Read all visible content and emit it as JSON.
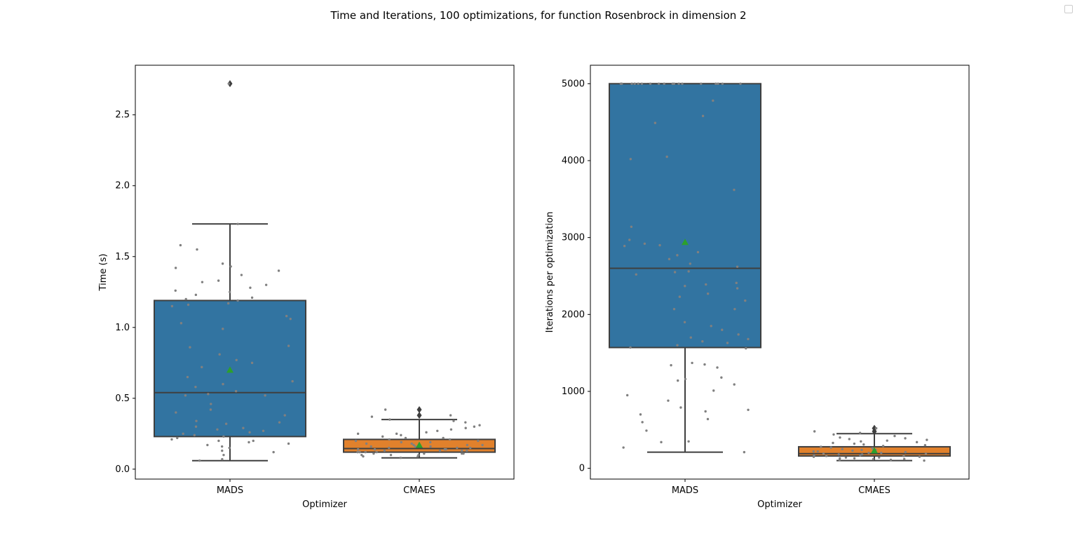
{
  "figure": {
    "title": "Time and Iterations, 100 optimizations, for function Rosenbrock in dimension 2"
  },
  "colors": {
    "mads": "#3274a1",
    "cmaes": "#e1812c",
    "box_edge": "#3f3f3f",
    "mean_marker": "#2ca02c",
    "strip_points": "#808080"
  },
  "chart_data": [
    {
      "type": "box",
      "xlabel": "Optimizer",
      "ylabel": "Time (s)",
      "ylim": [
        -0.07,
        2.85
      ],
      "yticks": [
        0.0,
        0.5,
        1.0,
        1.5,
        2.0,
        2.5
      ],
      "ytick_labels": [
        "0.0",
        "0.5",
        "1.0",
        "1.5",
        "2.0",
        "2.5"
      ],
      "categories": [
        "MADS",
        "CMAES"
      ],
      "legend": "top-right (empty)",
      "grid": false,
      "boxes": [
        {
          "name": "MADS",
          "color": "#3274a1",
          "whisker_low": 0.06,
          "q1": 0.23,
          "median": 0.54,
          "q3": 1.19,
          "whisker_high": 1.73,
          "mean": 0.7,
          "outliers": [
            2.72
          ]
        },
        {
          "name": "CMAES",
          "color": "#e1812c",
          "whisker_low": 0.08,
          "q1": 0.12,
          "median": 0.145,
          "q3": 0.21,
          "whisker_high": 0.35,
          "mean": 0.17,
          "outliers": [
            0.38,
            0.42
          ]
        }
      ],
      "points": [
        [
          2.72,
          1.73,
          1.58,
          1.55,
          1.45,
          1.43,
          1.42,
          1.4,
          1.37,
          1.33,
          1.32,
          1.3,
          1.28,
          1.26,
          1.25,
          1.23,
          1.21,
          1.2,
          1.19,
          1.17,
          1.16,
          1.15,
          1.08,
          1.06,
          1.03,
          0.99,
          0.87,
          0.86,
          0.81,
          0.77,
          0.75,
          0.72,
          0.65,
          0.62,
          0.6,
          0.58,
          0.55,
          0.53,
          0.52,
          0.52,
          0.46,
          0.42,
          0.4,
          0.38,
          0.34,
          0.33,
          0.32,
          0.3,
          0.29,
          0.28,
          0.27,
          0.26,
          0.25,
          0.24,
          0.23,
          0.22,
          0.21,
          0.2,
          0.2,
          0.19,
          0.18,
          0.17,
          0.16,
          0.15,
          0.13,
          0.12,
          0.1,
          0.07,
          0.06
        ],
        [
          0.42,
          0.38,
          0.37,
          0.35,
          0.34,
          0.33,
          0.31,
          0.3,
          0.29,
          0.28,
          0.27,
          0.26,
          0.25,
          0.25,
          0.24,
          0.23,
          0.22,
          0.22,
          0.21,
          0.21,
          0.2,
          0.2,
          0.19,
          0.19,
          0.18,
          0.18,
          0.17,
          0.17,
          0.17,
          0.16,
          0.16,
          0.16,
          0.15,
          0.15,
          0.15,
          0.14,
          0.14,
          0.14,
          0.14,
          0.13,
          0.13,
          0.13,
          0.13,
          0.12,
          0.12,
          0.12,
          0.12,
          0.11,
          0.11,
          0.11,
          0.11,
          0.1,
          0.1,
          0.1,
          0.09,
          0.09,
          0.08
        ]
      ]
    },
    {
      "type": "box",
      "xlabel": "Optimizer",
      "ylabel": "Iterations per optimization",
      "ylim": [
        -140,
        5240
      ],
      "yticks": [
        0,
        1000,
        2000,
        3000,
        4000,
        5000
      ],
      "ytick_labels": [
        "0",
        "1000",
        "2000",
        "3000",
        "4000",
        "5000"
      ],
      "categories": [
        "MADS",
        "CMAES"
      ],
      "grid": false,
      "boxes": [
        {
          "name": "MADS",
          "color": "#3274a1",
          "whisker_low": 210,
          "q1": 1570,
          "median": 2600,
          "q3": 5000,
          "whisker_high": 5000,
          "mean": 2940,
          "outliers": []
        },
        {
          "name": "CMAES",
          "color": "#e1812c",
          "whisker_low": 100,
          "q1": 160,
          "median": 190,
          "q3": 280,
          "whisker_high": 450,
          "mean": 230,
          "outliers": [
            480,
            520
          ]
        }
      ],
      "points": [
        [
          5000,
          5000,
          5000,
          5000,
          5000,
          5000,
          5000,
          5000,
          5000,
          5000,
          5000,
          5000,
          5000,
          5000,
          5000,
          5000,
          5000,
          5000,
          4780,
          4580,
          4490,
          4050,
          4020,
          3620,
          3140,
          2970,
          2920,
          2900,
          2890,
          2810,
          2770,
          2720,
          2660,
          2620,
          2560,
          2550,
          2520,
          2410,
          2390,
          2370,
          2340,
          2270,
          2230,
          2180,
          2070,
          2070,
          1900,
          1850,
          1800,
          1740,
          1700,
          1680,
          1650,
          1630,
          1600,
          1570,
          1560,
          1370,
          1350,
          1340,
          1310,
          1180,
          1160,
          1140,
          1090,
          1010,
          950,
          880,
          790,
          760,
          740,
          700,
          640,
          600,
          490,
          350,
          340,
          270,
          210
        ],
        [
          520,
          480,
          460,
          440,
          420,
          400,
          390,
          380,
          370,
          360,
          350,
          340,
          330,
          320,
          310,
          300,
          290,
          280,
          270,
          260,
          250,
          240,
          240,
          230,
          220,
          220,
          210,
          200,
          200,
          190,
          190,
          180,
          180,
          170,
          170,
          160,
          160,
          150,
          150,
          140,
          140,
          130,
          130,
          120,
          120,
          110,
          110,
          100
        ]
      ]
    }
  ]
}
